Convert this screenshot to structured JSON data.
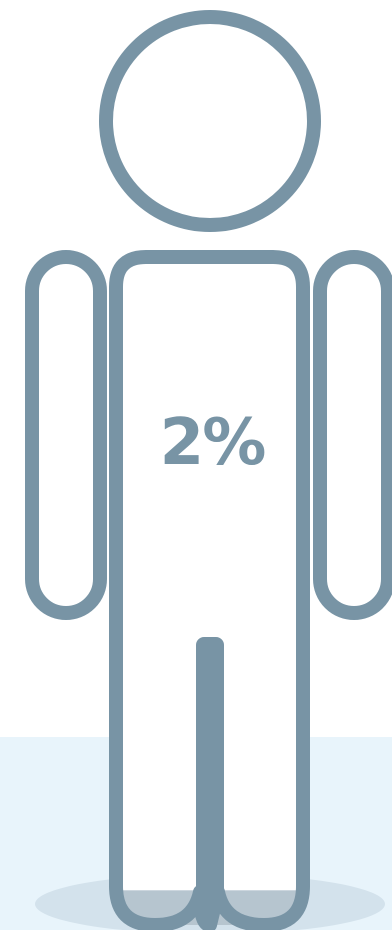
{
  "figure": {
    "percent_label": "2%",
    "fill_level": 0.02,
    "colors": {
      "outline": "#7894a5",
      "fill": "#b6c5cf",
      "floor": "#e8f4fb",
      "shadow": "#d3e2ec",
      "background": "#ffffff"
    },
    "icons": [
      "person-figure-icon"
    ]
  }
}
